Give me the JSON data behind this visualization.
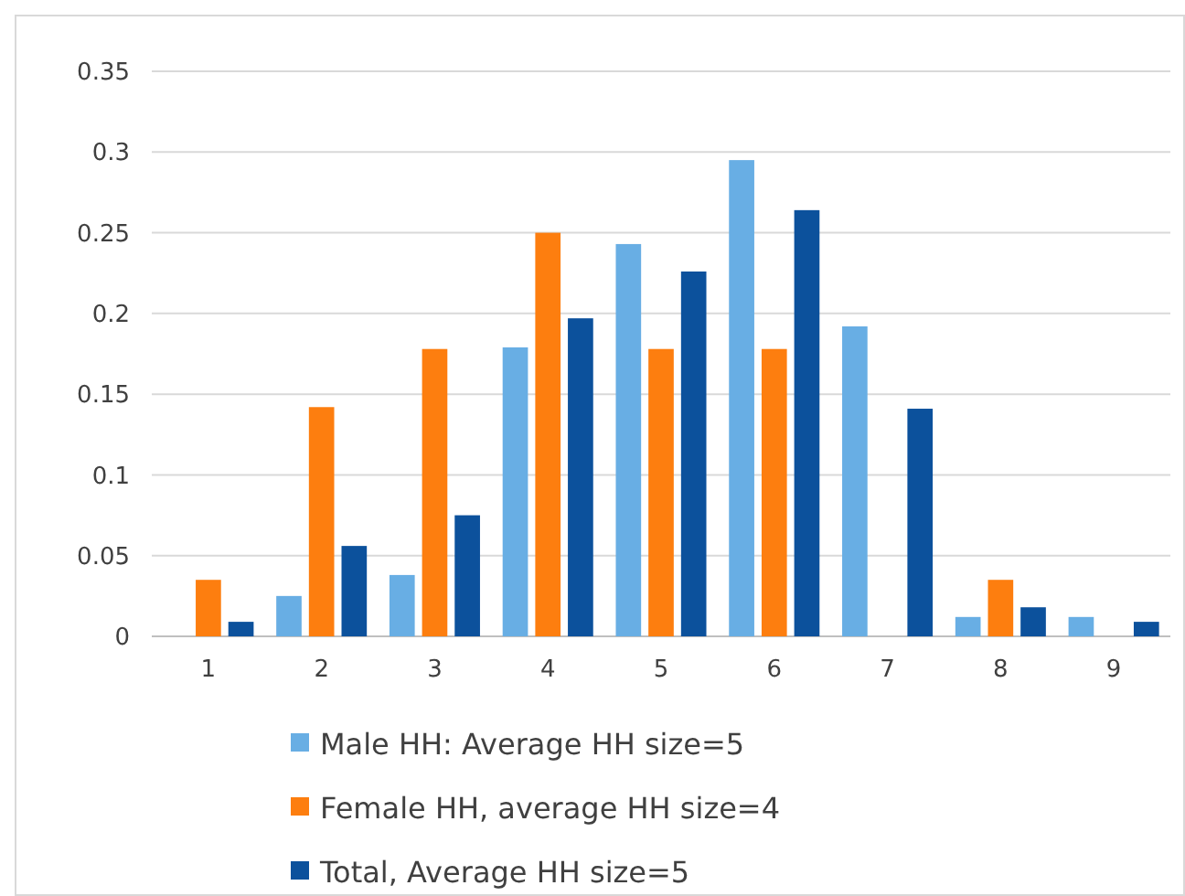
{
  "chart_data": {
    "type": "bar",
    "categories": [
      "1",
      "2",
      "3",
      "4",
      "5",
      "6",
      "7",
      "8",
      "9"
    ],
    "series": [
      {
        "name": "Male HH: Average HH size=5",
        "color": "#68aee4",
        "values": [
          0,
          0.025,
          0.038,
          0.179,
          0.243,
          0.295,
          0.192,
          0.012,
          0.012
        ]
      },
      {
        "name": "Female HH, average HH size=4",
        "color": "#fd7e0f",
        "values": [
          0.035,
          0.142,
          0.178,
          0.25,
          0.178,
          0.178,
          0,
          0.035,
          0
        ]
      },
      {
        "name": "Total, Average HH size=5",
        "color": "#0c519c",
        "values": [
          0.009,
          0.056,
          0.075,
          0.197,
          0.226,
          0.264,
          0.141,
          0.018,
          0.009
        ]
      }
    ],
    "ylim": [
      0,
      0.35
    ],
    "yticks": [
      0,
      0.05,
      0.1,
      0.15,
      0.2,
      0.25,
      0.3,
      0.35
    ],
    "grid": "y",
    "legend": "bottom"
  }
}
